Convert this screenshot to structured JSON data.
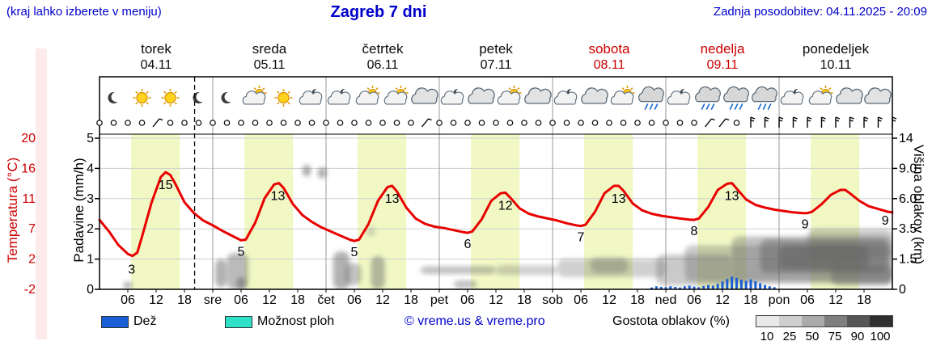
{
  "header": {
    "hint": "(kraj lahko izberete v meniju)",
    "title": "Zagreb 7 dni",
    "updated": "Zadnja posodobitev: 04.11.2025 - 20:09"
  },
  "colors": {
    "blue_text": "#0000cc",
    "red_text": "#cc0000",
    "temp_line": "#e80000",
    "day_band": "#f1f8c4",
    "rain_bar": "#1a5fd6",
    "shower_swatch": "#2fe0c8",
    "grid": "#cfcfcf",
    "separator": "#9a9a9a",
    "cloud_fill": "#666666"
  },
  "axes": {
    "temp": {
      "label": "Temperatura (°C)",
      "ticks": [
        "20",
        "16",
        "11",
        "7",
        "2",
        "-2"
      ]
    },
    "rain": {
      "label": "Padavine (mm/h)",
      "ticks": [
        "5",
        "4",
        "3",
        "2",
        "1",
        "0"
      ]
    },
    "cloud": {
      "label": "Višina oblakov (km)",
      "ticks": [
        "14",
        "9.0",
        "6.0",
        "3.5",
        "1.5",
        "0"
      ]
    }
  },
  "days": [
    {
      "name": "torek",
      "date": "04.11",
      "red": false,
      "icons": [
        "moon",
        "sun",
        "sun",
        "moon"
      ]
    },
    {
      "name": "sreda",
      "date": "05.11",
      "red": false,
      "icons": [
        "moon",
        "sun-cloud",
        "sun",
        "moon-cloud"
      ]
    },
    {
      "name": "četrtek",
      "date": "06.11",
      "red": false,
      "icons": [
        "moon-cloud",
        "sun-cloud",
        "sun-cloud",
        "cloud"
      ]
    },
    {
      "name": "petek",
      "date": "07.11",
      "red": false,
      "icons": [
        "moon-cloud",
        "cloud",
        "sun-cloud",
        "cloud"
      ]
    },
    {
      "name": "sobota",
      "date": "08.11",
      "red": true,
      "icons": [
        "moon-cloud",
        "cloud",
        "sun-cloud",
        "cloud-rain"
      ]
    },
    {
      "name": "nedelja",
      "date": "09.11",
      "red": true,
      "icons": [
        "moon-cloud",
        "cloud-rain",
        "cloud-rain",
        "cloud-rain"
      ]
    },
    {
      "name": "ponedeljek",
      "date": "10.11",
      "red": false,
      "icons": [
        "moon-cloud",
        "sun-cloud",
        "cloud",
        "cloud"
      ]
    }
  ],
  "xaxis": {
    "hours": [
      "06",
      "12",
      "18"
    ],
    "day_abbrs": [
      "sre",
      "čet",
      "pet",
      "sob",
      "ned",
      "pon"
    ]
  },
  "legend": {
    "rain": "Dež",
    "showers": "Možnost ploh",
    "credit": "© vreme.us & vreme.pro",
    "cloud_density": "Gostota oblakov (%)",
    "cloud_scale": [
      {
        "v": "10",
        "c": "#e9e9e9"
      },
      {
        "v": "25",
        "c": "#cfcfcf"
      },
      {
        "v": "50",
        "c": "#ababab"
      },
      {
        "v": "75",
        "c": "#7f7f7f"
      },
      {
        "v": "90",
        "c": "#565656"
      },
      {
        "v": "100",
        "c": "#2f2f2f"
      }
    ]
  },
  "chart_data": {
    "type": "line",
    "title": "Zagreb 7 dni",
    "x_axis": {
      "unit": "hours from 04.11 00:00",
      "range": [
        0,
        168
      ],
      "day_starts": [
        0,
        24,
        48,
        72,
        96,
        120,
        144
      ]
    },
    "now_hour": 20.15,
    "daylight_hours": [
      6.7,
      17.0
    ],
    "temp_axis": {
      "range": [
        -2.2,
        20
      ],
      "ticks": [
        20,
        16,
        11,
        7,
        2,
        -2
      ],
      "unit": "°C"
    },
    "rain_axis": {
      "range": [
        0,
        5
      ],
      "ticks": [
        5,
        4,
        3,
        2,
        1,
        0
      ],
      "unit": "mm/h"
    },
    "cloud_axis_km": {
      "ticks": [
        14,
        9.0,
        6.0,
        3.5,
        1.5,
        0
      ]
    },
    "series": [
      {
        "name": "temperatura",
        "unit": "°C",
        "points": [
          [
            0,
            8
          ],
          [
            2,
            6.3
          ],
          [
            4,
            4.3
          ],
          [
            6,
            3
          ],
          [
            7,
            2.7
          ],
          [
            8,
            3.2
          ],
          [
            9,
            5.5
          ],
          [
            11,
            10.5
          ],
          [
            13,
            14.3
          ],
          [
            14,
            15
          ],
          [
            15,
            14.6
          ],
          [
            16,
            13.4
          ],
          [
            18,
            10.6
          ],
          [
            20,
            9
          ],
          [
            22,
            7.9
          ],
          [
            24,
            7.2
          ],
          [
            26,
            6.4
          ],
          [
            28,
            5.7
          ],
          [
            30,
            5
          ],
          [
            31,
            5.1
          ],
          [
            33,
            7.6
          ],
          [
            35,
            11.2
          ],
          [
            37,
            13.2
          ],
          [
            38,
            13.4
          ],
          [
            39,
            12.7
          ],
          [
            41,
            10.3
          ],
          [
            43,
            8.7
          ],
          [
            45,
            7.7
          ],
          [
            47,
            6.9
          ],
          [
            49,
            6.3
          ],
          [
            51,
            5.7
          ],
          [
            53,
            5.1
          ],
          [
            54,
            4.9
          ],
          [
            55,
            5.1
          ],
          [
            57,
            7.4
          ],
          [
            59,
            10.8
          ],
          [
            61,
            12.8
          ],
          [
            62,
            13
          ],
          [
            63,
            12.2
          ],
          [
            65,
            9.8
          ],
          [
            67,
            8.2
          ],
          [
            69,
            7.4
          ],
          [
            71,
            7
          ],
          [
            73,
            6.8
          ],
          [
            75,
            6.5
          ],
          [
            77,
            6.2
          ],
          [
            78,
            6.1
          ],
          [
            79,
            6.3
          ],
          [
            81,
            8.1
          ],
          [
            83,
            10.8
          ],
          [
            85,
            11.9
          ],
          [
            86,
            12
          ],
          [
            87,
            11.3
          ],
          [
            89,
            9.7
          ],
          [
            91,
            8.9
          ],
          [
            93,
            8.5
          ],
          [
            95,
            8.2
          ],
          [
            97,
            7.9
          ],
          [
            99,
            7.5
          ],
          [
            101,
            7.2
          ],
          [
            102,
            7.1
          ],
          [
            103,
            7.3
          ],
          [
            105,
            9.2
          ],
          [
            107,
            11.9
          ],
          [
            109,
            13
          ],
          [
            110,
            13
          ],
          [
            111,
            12.3
          ],
          [
            113,
            10.4
          ],
          [
            115,
            9.4
          ],
          [
            117,
            8.9
          ],
          [
            119,
            8.6
          ],
          [
            121,
            8.4
          ],
          [
            123,
            8.2
          ],
          [
            125,
            8.05
          ],
          [
            126,
            8
          ],
          [
            127,
            8.2
          ],
          [
            129,
            9.9
          ],
          [
            131,
            12.4
          ],
          [
            133,
            13.3
          ],
          [
            134,
            13.4
          ],
          [
            135,
            12.6
          ],
          [
            137,
            11
          ],
          [
            139,
            10.2
          ],
          [
            141,
            9.8
          ],
          [
            143,
            9.5
          ],
          [
            145,
            9.3
          ],
          [
            147,
            9.1
          ],
          [
            149,
            9
          ],
          [
            150,
            9
          ],
          [
            151,
            9.2
          ],
          [
            153,
            10.3
          ],
          [
            155,
            11.7
          ],
          [
            157,
            12.4
          ],
          [
            158,
            12.4
          ],
          [
            159,
            11.9
          ],
          [
            161,
            10.8
          ],
          [
            163,
            10
          ],
          [
            165,
            9.6
          ],
          [
            167,
            9.2
          ],
          [
            168,
            9.1
          ]
        ]
      },
      {
        "name": "padavine",
        "unit": "mm/h",
        "points": [
          [
            117,
            0.06
          ],
          [
            118,
            0.1
          ],
          [
            119,
            0.08
          ],
          [
            120,
            0.07
          ],
          [
            121,
            0.1
          ],
          [
            122,
            0.08
          ],
          [
            123,
            0.06
          ],
          [
            124,
            0.1
          ],
          [
            125,
            0.12
          ],
          [
            126,
            0.09
          ],
          [
            127,
            0.07
          ],
          [
            128,
            0.11
          ],
          [
            129,
            0.14
          ],
          [
            130,
            0.12
          ],
          [
            131,
            0.18
          ],
          [
            132,
            0.26
          ],
          [
            133,
            0.34
          ],
          [
            134,
            0.42
          ],
          [
            135,
            0.38
          ],
          [
            136,
            0.32
          ],
          [
            137,
            0.28
          ],
          [
            138,
            0.33
          ],
          [
            139,
            0.27
          ],
          [
            140,
            0.2
          ],
          [
            141,
            0.14
          ],
          [
            142,
            0.1
          ],
          [
            143,
            0.07
          ]
        ]
      }
    ],
    "temp_labels": [
      {
        "t": 6.8,
        "v": 2.7,
        "dy": 22,
        "text": "3"
      },
      {
        "t": 14,
        "v": 15,
        "dy": 21,
        "text": "15"
      },
      {
        "t": 30,
        "v": 5,
        "dy": 19,
        "text": "5"
      },
      {
        "t": 37.8,
        "v": 13.4,
        "dy": 21,
        "text": "13"
      },
      {
        "t": 54,
        "v": 4.9,
        "dy": 19,
        "text": "5"
      },
      {
        "t": 62,
        "v": 13,
        "dy": 21,
        "text": "13"
      },
      {
        "t": 78,
        "v": 6.1,
        "dy": 19,
        "text": "6"
      },
      {
        "t": 86,
        "v": 12,
        "dy": 21,
        "text": "12"
      },
      {
        "t": 102,
        "v": 7.1,
        "dy": 19,
        "text": "7"
      },
      {
        "t": 110,
        "v": 13,
        "dy": 21,
        "text": "13"
      },
      {
        "t": 126,
        "v": 8,
        "dy": 19,
        "text": "8"
      },
      {
        "t": 134,
        "v": 13.4,
        "dy": 21,
        "text": "13"
      },
      {
        "t": 149.5,
        "v": 9,
        "dy": 19,
        "text": "9"
      },
      {
        "t": 166.5,
        "v": 9.2,
        "dy": 16,
        "text": "9"
      }
    ],
    "wind_symbols": [
      "calm",
      "calm",
      "calm",
      "calm",
      "slash",
      "calm",
      "calm",
      "calm",
      "calm",
      "calm",
      "calm",
      "calm",
      "calm",
      "calm",
      "calm",
      "calm",
      "calm",
      "calm",
      "calm",
      "calm",
      "calm",
      "calm",
      "calm",
      "slash",
      "calm",
      "calm",
      "calm",
      "calm",
      "calm",
      "calm",
      "calm",
      "calm",
      "calm",
      "calm",
      "calm",
      "calm",
      "calm",
      "calm",
      "calm",
      "calm",
      "calm",
      "calm",
      "calm",
      "slash",
      "slash",
      "calm",
      "barb",
      "barb",
      "barb",
      "barb",
      "barb",
      "barb",
      "barb",
      "barb",
      "barb",
      "barb",
      "barb"
    ],
    "cloud_blobs": [
      {
        "t0": 5,
        "t1": 7,
        "km0": 0,
        "km1": 0.4,
        "g": 0.45
      },
      {
        "t0": 24.5,
        "t1": 27,
        "km0": 0.1,
        "km1": 1.5,
        "g": 0.5
      },
      {
        "t0": 27,
        "t1": 31.5,
        "km0": 0,
        "km1": 1.9,
        "g": 0.45
      },
      {
        "t0": 29,
        "t1": 31,
        "km0": 0,
        "km1": 0.6,
        "g": 0.55
      },
      {
        "t0": 43,
        "t1": 44.8,
        "km0": 8.2,
        "km1": 9.6,
        "g": 0.55
      },
      {
        "t0": 46.2,
        "t1": 48.2,
        "km0": 8.0,
        "km1": 9.2,
        "g": 0.5
      },
      {
        "t0": 49.5,
        "t1": 53,
        "km0": 0,
        "km1": 2.0,
        "g": 0.5
      },
      {
        "t0": 52,
        "t1": 55.5,
        "km0": 0.2,
        "km1": 1.3,
        "g": 0.4
      },
      {
        "t0": 57.5,
        "t1": 60.5,
        "km0": 0,
        "km1": 1.7,
        "g": 0.45
      },
      {
        "t0": 56.5,
        "t1": 58.5,
        "km0": 3.0,
        "km1": 3.7,
        "g": 0.25
      },
      {
        "t0": 68,
        "t1": 84,
        "km0": 0.75,
        "km1": 1.15,
        "g": 0.4
      },
      {
        "t0": 75,
        "t1": 80,
        "km0": 0.05,
        "km1": 0.45,
        "g": 0.4
      },
      {
        "t0": 84,
        "t1": 97,
        "km0": 0.7,
        "km1": 1.2,
        "g": 0.3
      },
      {
        "t0": 97,
        "t1": 120,
        "km0": 0.6,
        "km1": 1.5,
        "g": 0.3
      },
      {
        "t0": 104,
        "t1": 112,
        "km0": 0.8,
        "km1": 1.6,
        "g": 0.35
      },
      {
        "t0": 118,
        "t1": 134,
        "km0": 0.2,
        "km1": 1.8,
        "g": 0.35
      },
      {
        "t0": 124,
        "t1": 168,
        "km0": 0.4,
        "km1": 2.4,
        "g": 0.35
      },
      {
        "t0": 134,
        "t1": 168,
        "km0": 0.3,
        "km1": 3.0,
        "g": 0.4
      },
      {
        "t0": 140,
        "t1": 167,
        "km0": 0.8,
        "km1": 2.8,
        "g": 0.5
      },
      {
        "t0": 144,
        "t1": 163,
        "km0": 1.0,
        "km1": 2.4,
        "g": 0.6
      },
      {
        "t0": 150,
        "t1": 168,
        "km0": 1.6,
        "km1": 3.5,
        "g": 0.35
      },
      {
        "t0": 155,
        "t1": 168,
        "km0": 0.2,
        "km1": 1.2,
        "g": 0.45
      }
    ]
  }
}
